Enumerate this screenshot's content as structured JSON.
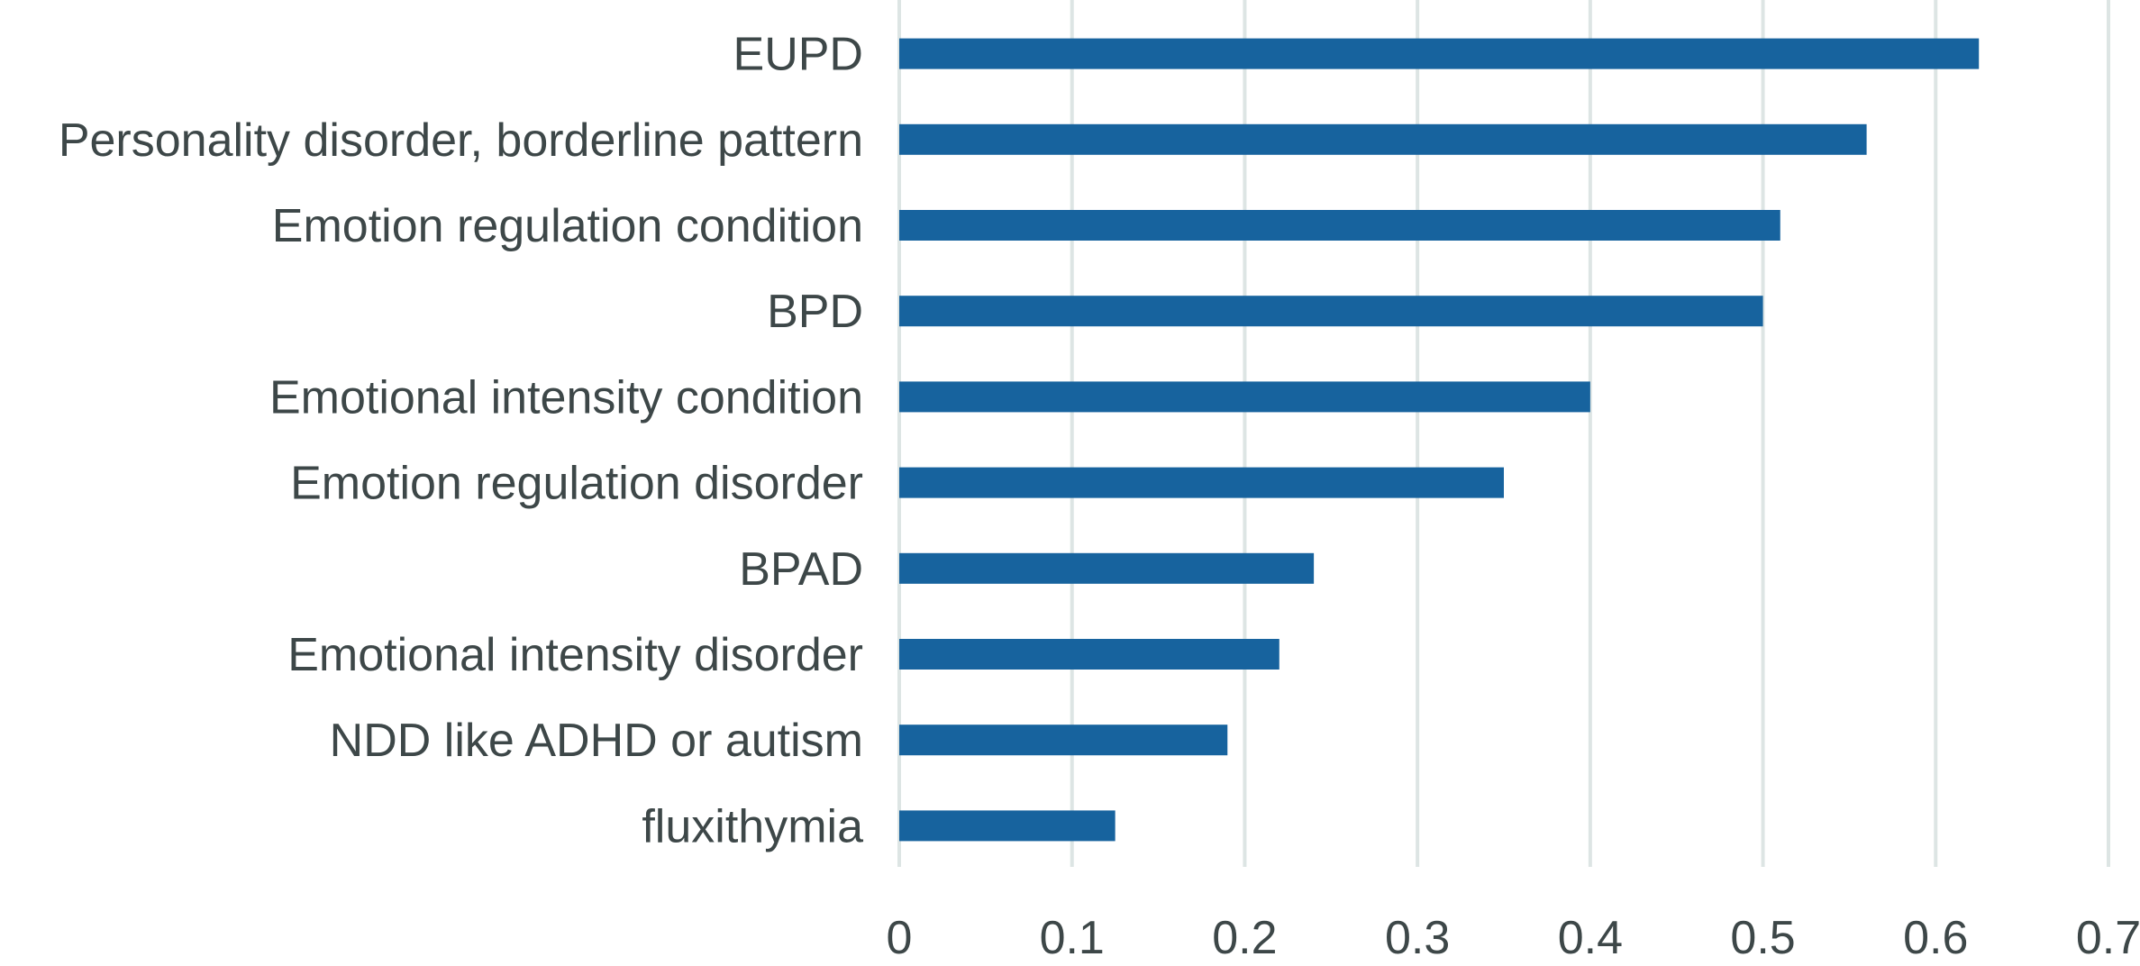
{
  "chart_data": {
    "type": "bar",
    "orientation": "horizontal",
    "title": "",
    "xlabel": "",
    "ylabel": "",
    "categories": [
      "EUPD",
      "Personality disorder, borderline pattern",
      "Emotion regulation condition",
      "BPD",
      "Emotional intensity condition",
      "Emotion regulation disorder",
      "BPAD",
      "Emotional intensity disorder",
      "NDD like ADHD or autism",
      "fluxithymia"
    ],
    "values": [
      0.625,
      0.56,
      0.51,
      0.5,
      0.4,
      0.35,
      0.24,
      0.22,
      0.19,
      0.125
    ],
    "xlim": [
      0,
      0.7
    ],
    "xticks": [
      "0",
      "0.1",
      "0.2",
      "0.3",
      "0.4",
      "0.5",
      "0.6",
      "0.7"
    ],
    "grid": true,
    "legend": "none",
    "colors": {
      "bar": "#17639e",
      "grid": "#dde5e4",
      "text": "#3d4748"
    }
  }
}
